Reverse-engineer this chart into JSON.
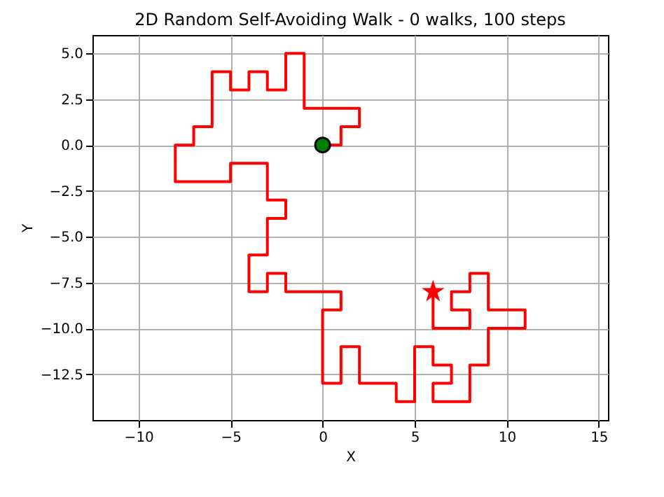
{
  "chart_data": {
    "type": "line",
    "title": "2D Random Self-Avoiding Walk - 0 walks, 100 steps",
    "xlabel": "X",
    "ylabel": "Y",
    "xlim": [
      -12.5,
      15.5
    ],
    "ylim": [
      -15,
      6
    ],
    "xticks": [
      {
        "value": -10,
        "label": "−10"
      },
      {
        "value": -5,
        "label": "−5"
      },
      0,
      5,
      10,
      15
    ],
    "yticks": [
      {
        "value": -12.5,
        "label": "−12.5"
      },
      {
        "value": -10,
        "label": "−10.0"
      },
      {
        "value": -7.5,
        "label": "−7.5"
      },
      {
        "value": -5,
        "label": "−5.0"
      },
      {
        "value": -2.5,
        "label": "−2.5"
      },
      {
        "value": 0,
        "label": "0.0"
      },
      {
        "value": 2.5,
        "label": "2.5"
      },
      {
        "value": 5,
        "label": "5.0"
      }
    ],
    "grid": true,
    "legend": false,
    "series": [
      {
        "type": "line",
        "color": "#ff0000",
        "marker": "none",
        "x": [
          0,
          1,
          1,
          2,
          2,
          1,
          0,
          -1,
          -1,
          -1,
          -1,
          -2,
          -2,
          -2,
          -3,
          -3,
          -4,
          -4,
          -5,
          -5,
          -6,
          -6,
          -6,
          -6,
          -7,
          -7,
          -8,
          -8,
          -8,
          -7,
          -6,
          -5,
          -5,
          -4,
          -3,
          -3,
          -3,
          -2,
          -2,
          -3,
          -3,
          -3,
          -4,
          -4,
          -4,
          -3,
          -3,
          -2,
          -2,
          -1,
          0,
          1,
          1,
          0,
          0,
          0,
          0,
          0,
          1,
          1,
          1,
          2,
          2,
          2,
          3,
          4,
          4,
          5,
          5,
          5,
          5,
          6,
          6,
          7,
          7,
          6,
          6,
          7,
          8,
          8,
          8,
          9,
          9,
          9,
          10,
          11,
          11,
          10,
          9,
          9,
          9,
          8,
          8,
          7,
          7,
          8,
          8,
          7,
          6,
          6,
          6
        ],
        "values": [
          0,
          0,
          1,
          1,
          2,
          2,
          2,
          2,
          3,
          4,
          5,
          5,
          4,
          3,
          3,
          4,
          4,
          3,
          3,
          4,
          4,
          3,
          2,
          1,
          1,
          0,
          0,
          -1,
          -2,
          -2,
          -2,
          -2,
          -1,
          -1,
          -1,
          -2,
          -3,
          -3,
          -4,
          -4,
          -5,
          -6,
          -6,
          -7,
          -8,
          -8,
          -7,
          -7,
          -8,
          -8,
          -8,
          -8,
          -9,
          -9,
          -10,
          -11,
          -12,
          -13,
          -13,
          -12,
          -11,
          -11,
          -12,
          -13,
          -13,
          -13,
          -14,
          -14,
          -13,
          -12,
          -11,
          -11,
          -12,
          -12,
          -13,
          -13,
          -14,
          -14,
          -14,
          -13,
          -12,
          -12,
          -11,
          -10,
          -10,
          -10,
          -9,
          -9,
          -9,
          -8,
          -7,
          -7,
          -8,
          -8,
          -9,
          -9,
          -10,
          -10,
          -10,
          -9,
          -8
        ]
      },
      {
        "type": "scatter",
        "color": "#008000",
        "marker": "circle",
        "x": [
          0
        ],
        "values": [
          0
        ]
      },
      {
        "type": "scatter",
        "color": "#ff0000",
        "marker": "star",
        "x": [
          6
        ],
        "values": [
          -8
        ]
      }
    ]
  }
}
